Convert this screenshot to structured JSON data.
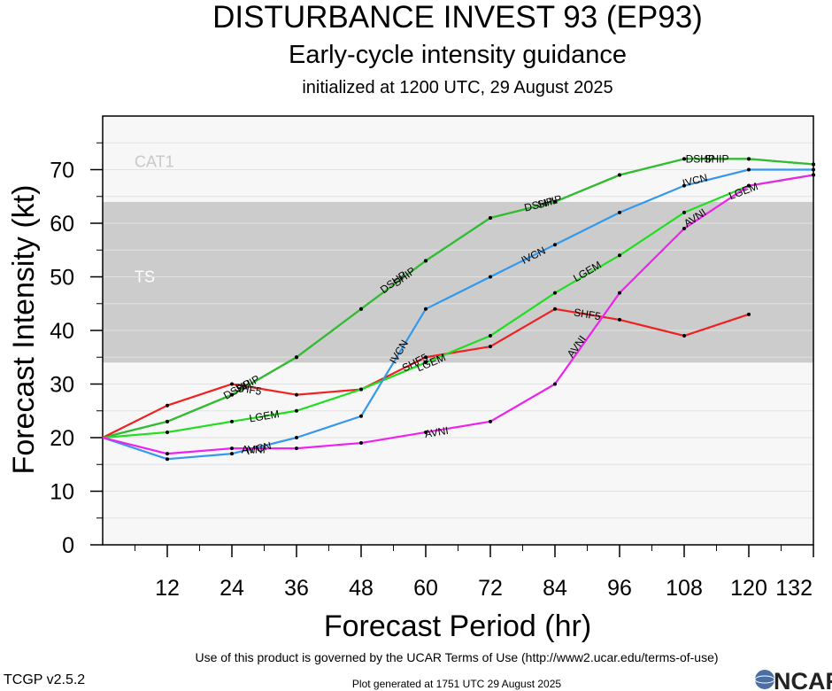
{
  "header": {
    "title": "DISTURBANCE INVEST 93 (EP93)",
    "subtitle": "Early-cycle intensity guidance",
    "init_line": "initialized at 1200 UTC, 29 August 2025"
  },
  "footer": {
    "terms": "Use of this product is governed by the UCAR Terms of Use (http://www2.ucar.edu/terms-of-use)",
    "generated": "Plot generated at 1751 UTC   29 August 2025",
    "version": "TCGP v2.5.2",
    "logo_text": "NCAR"
  },
  "chart_data": {
    "type": "line",
    "title": "DISTURBANCE INVEST 93 (EP93)",
    "xlabel": "Forecast Period (hr)",
    "ylabel": "Forecast Intensity (kt)",
    "xlim": [
      0,
      132
    ],
    "ylim": [
      0,
      80
    ],
    "x_ticks": [
      12,
      24,
      36,
      48,
      60,
      72,
      84,
      96,
      108,
      120,
      132
    ],
    "y_ticks": [
      0,
      10,
      20,
      30,
      40,
      50,
      60,
      70
    ],
    "grid": "horizontal",
    "bands": [
      {
        "label": "TS",
        "from": 34,
        "to": 64,
        "color": "#cccccc"
      },
      {
        "label": "CAT1",
        "from": 64,
        "to": 80,
        "color": "#f7f7f7"
      }
    ],
    "series": [
      {
        "name": "SHIP",
        "color": "#33bb33",
        "x": [
          0,
          12,
          24,
          36,
          48,
          60,
          72,
          84,
          96,
          108,
          120,
          132
        ],
        "values": [
          20,
          23,
          28,
          35,
          44,
          53,
          61,
          64,
          69,
          72,
          72,
          71
        ],
        "labels": [
          {
            "text": "SHIP",
            "x": 27,
            "y": 30
          },
          {
            "text": "SHIP",
            "x": 56,
            "y": 50
          },
          {
            "text": "SHIP",
            "x": 83,
            "y": 64
          },
          {
            "text": "SHIP",
            "x": 114,
            "y": 72
          }
        ]
      },
      {
        "name": "DSHP",
        "color": "#33bb33",
        "x": [
          0,
          12,
          24,
          36,
          48,
          60,
          72,
          84,
          96,
          108,
          120,
          132
        ],
        "values": [
          20,
          23,
          28,
          35,
          44,
          53,
          61,
          64,
          69,
          72,
          72,
          71
        ],
        "labels": [
          {
            "text": "DSHP",
            "x": 25,
            "y": 29
          },
          {
            "text": "DSHP",
            "x": 54,
            "y": 49
          },
          {
            "text": "DSHP",
            "x": 81,
            "y": 63.5
          },
          {
            "text": "DSHP",
            "x": 111,
            "y": 72
          }
        ]
      },
      {
        "name": "SHF5",
        "color": "#ee2222",
        "x": [
          0,
          12,
          24,
          36,
          48,
          60,
          72,
          84,
          96,
          108,
          120
        ],
        "values": [
          20,
          26,
          30,
          28,
          29,
          35,
          37,
          44,
          42,
          39,
          43
        ],
        "labels": [
          {
            "text": "SHF5",
            "x": 27,
            "y": 29
          },
          {
            "text": "SHF5",
            "x": 58,
            "y": 34
          },
          {
            "text": "SHF5",
            "x": 90,
            "y": 43
          }
        ]
      },
      {
        "name": "LGEM",
        "color": "#22dd22",
        "x": [
          0,
          12,
          24,
          36,
          48,
          60,
          72,
          84,
          96,
          108,
          120,
          132
        ],
        "values": [
          20,
          21,
          23,
          25,
          29,
          34,
          39,
          47,
          54,
          62,
          67,
          69
        ],
        "labels": [
          {
            "text": "LGEM",
            "x": 30,
            "y": 24
          },
          {
            "text": "LGEM",
            "x": 61,
            "y": 34
          },
          {
            "text": "LGEM",
            "x": 90,
            "y": 51
          },
          {
            "text": "LGEM",
            "x": 119,
            "y": 66
          }
        ]
      },
      {
        "name": "IVCN",
        "color": "#3399ee",
        "x": [
          0,
          12,
          24,
          36,
          48,
          60,
          72,
          84,
          96,
          108,
          120,
          132
        ],
        "values": [
          20,
          16,
          17,
          20,
          24,
          44,
          50,
          56,
          62,
          67,
          70,
          70
        ],
        "labels": [
          {
            "text": "IVCN",
            "x": 29,
            "y": 18
          },
          {
            "text": "IVCN",
            "x": 55,
            "y": 36
          },
          {
            "text": "IVCN",
            "x": 80,
            "y": 54
          },
          {
            "text": "IVCN",
            "x": 110,
            "y": 68
          }
        ]
      },
      {
        "name": "AVNI",
        "color": "#ee22ee",
        "x": [
          0,
          12,
          24,
          36,
          48,
          60,
          72,
          84,
          96,
          108,
          120,
          132
        ],
        "values": [
          20,
          17,
          18,
          18,
          19,
          21,
          23,
          30,
          47,
          59,
          67,
          69
        ],
        "labels": [
          {
            "text": "AVNI",
            "x": 28,
            "y": 17.8
          },
          {
            "text": "AVNI",
            "x": 62,
            "y": 21
          },
          {
            "text": "AVNI",
            "x": 88,
            "y": 37
          },
          {
            "text": "AVNI",
            "x": 110,
            "y": 61
          }
        ]
      }
    ]
  }
}
